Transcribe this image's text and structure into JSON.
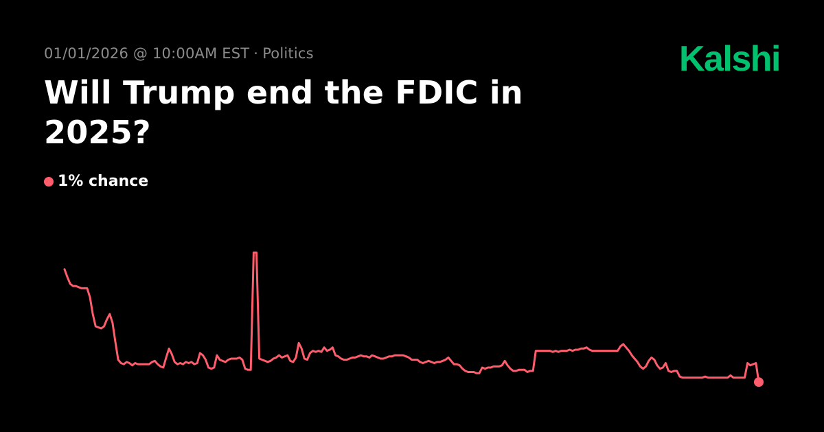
{
  "header": {
    "datetime": "01/01/2026 @ 10:00AM EST",
    "separator": "·",
    "category": "Politics",
    "title": "Will Trump end the FDIC in 2025?",
    "logo": "Kalshi"
  },
  "status": {
    "chance_text": "1% chance",
    "chance_value": 1
  },
  "colors": {
    "background": "#000000",
    "line": "#ff5c6c",
    "logo": "#00c26e"
  },
  "chart_data": {
    "type": "line",
    "series": [
      {
        "values": [
          11.5,
          10.8,
          10.2,
          10.0,
          10.0,
          9.9,
          9.8,
          9.8,
          9.8,
          9.0,
          7.5,
          6.4,
          6.3,
          6.2,
          6.4,
          7.0,
          7.5,
          6.7,
          5.0,
          3.4,
          3.1,
          3.0,
          3.2,
          3.1,
          2.9,
          3.1,
          3.0,
          3.0,
          3.0,
          3.0,
          3.0,
          3.2,
          3.3,
          3.0,
          2.8,
          2.7,
          3.6,
          4.4,
          3.9,
          3.2,
          3.0,
          3.1,
          3.0,
          3.2,
          3.1,
          3.2,
          3.0,
          3.1,
          4.0,
          3.8,
          3.4,
          2.7,
          2.6,
          2.7,
          3.8,
          3.4,
          3.3,
          3.2,
          3.4,
          3.5,
          3.5,
          3.5,
          3.6,
          3.4,
          2.6,
          2.5,
          2.5,
          13.0,
          13.0,
          3.5,
          3.4,
          3.3,
          3.2,
          3.3,
          3.5,
          3.6,
          3.8,
          3.6,
          3.7,
          3.8,
          3.3,
          3.2,
          3.6,
          4.9,
          4.4,
          3.5,
          3.4,
          4.0,
          4.2,
          4.1,
          4.2,
          4.1,
          4.5,
          4.2,
          4.3,
          4.5,
          3.8,
          3.7,
          3.5,
          3.4,
          3.4,
          3.5,
          3.6,
          3.6,
          3.7,
          3.8,
          3.7,
          3.7,
          3.6,
          3.8,
          3.7,
          3.6,
          3.5,
          3.5,
          3.6,
          3.7,
          3.7,
          3.8,
          3.8,
          3.8,
          3.8,
          3.7,
          3.6,
          3.4,
          3.4,
          3.4,
          3.2,
          3.1,
          3.2,
          3.3,
          3.2,
          3.1,
          3.2,
          3.2,
          3.3,
          3.4,
          3.6,
          3.3,
          3.0,
          3.0,
          2.9,
          2.6,
          2.4,
          2.3,
          2.3,
          2.3,
          2.2,
          2.2,
          2.7,
          2.6,
          2.7,
          2.7,
          2.8,
          2.8,
          2.8,
          2.9,
          3.3,
          2.9,
          2.6,
          2.4,
          2.4,
          2.5,
          2.5,
          2.5,
          2.3,
          2.4,
          2.4,
          4.2,
          4.2,
          4.2,
          4.2,
          4.2,
          4.2,
          4.1,
          4.2,
          4.1,
          4.2,
          4.2,
          4.2,
          4.3,
          4.2,
          4.3,
          4.3,
          4.4,
          4.4,
          4.5,
          4.3,
          4.2,
          4.2,
          4.2,
          4.2,
          4.2,
          4.2,
          4.2,
          4.2,
          4.2,
          4.2,
          4.6,
          4.8,
          4.5,
          4.2,
          3.8,
          3.5,
          3.2,
          2.8,
          2.6,
          2.8,
          3.3,
          3.6,
          3.4,
          2.9,
          2.6,
          2.7,
          3.1,
          2.4,
          2.3,
          2.4,
          2.4,
          1.9,
          1.8,
          1.8,
          1.8,
          1.8,
          1.8,
          1.8,
          1.8,
          1.8,
          1.9,
          1.8,
          1.8,
          1.8,
          1.8,
          1.8,
          1.8,
          1.8,
          1.8,
          2.0,
          1.8,
          1.8,
          1.8,
          1.8,
          1.8,
          3.1,
          2.9,
          3.0,
          3.1,
          1.4
        ]
      }
    ],
    "ylim": [
      0,
      14
    ],
    "grid": false,
    "legend": "none"
  }
}
